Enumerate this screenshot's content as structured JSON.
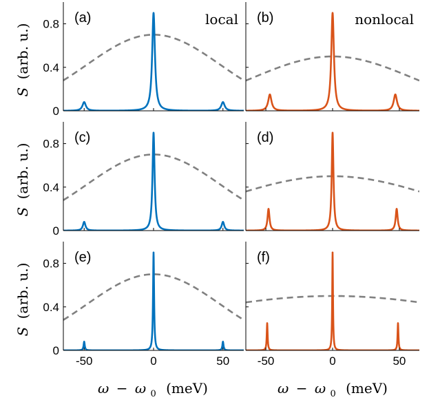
{
  "figure": {
    "ylabel_symbol": "S",
    "ylabel_unit": "(arb. u.)",
    "xlabel_omega": "ω",
    "xlabel_minus": "−",
    "xlabel_omega0": "ω",
    "xlabel_sub": "0",
    "xlabel_unit": "(meV)",
    "column_titles": [
      "local",
      "nonlocal"
    ],
    "colors": {
      "local": "#0072BD",
      "nonlocal": "#D95319",
      "envelope": "#808080",
      "axes": "#000000"
    }
  },
  "chart_data": [
    {
      "panel": "(a)",
      "type": "line",
      "corner_label": "local",
      "color": "#0072BD",
      "xlim": [
        -65,
        65
      ],
      "ylim": [
        0,
        1.0
      ],
      "xticks": [
        "-50",
        "0",
        "50"
      ],
      "yticks": [
        "0",
        "0.4",
        "0.8"
      ],
      "peaks": [
        {
          "x": -50,
          "y": 0.08,
          "width": 1.5
        },
        {
          "x": 0,
          "y": 0.9,
          "width": 1.2
        },
        {
          "x": 50,
          "y": 0.08,
          "width": 1.5
        }
      ],
      "envelope": {
        "style": "dashed",
        "peak": 0.7,
        "sigma": 48
      }
    },
    {
      "panel": "(b)",
      "type": "line",
      "corner_label": "nonlocal",
      "color": "#D95319",
      "xlim": [
        -65,
        65
      ],
      "ylim": [
        0,
        1.0
      ],
      "xticks": [
        "-50",
        "0",
        "50"
      ],
      "yticks": [
        "0",
        "0.4",
        "0.8"
      ],
      "peaks": [
        {
          "x": -47,
          "y": 0.15,
          "width": 1.5
        },
        {
          "x": 0,
          "y": 0.9,
          "width": 1.2
        },
        {
          "x": 47,
          "y": 0.15,
          "width": 1.5
        }
      ],
      "envelope": {
        "style": "dashed",
        "peak": 0.5,
        "sigma": 60
      }
    },
    {
      "panel": "(c)",
      "type": "line",
      "corner_label": "",
      "color": "#0072BD",
      "xlim": [
        -65,
        65
      ],
      "ylim": [
        0,
        1.0
      ],
      "xticks": [
        "-50",
        "0",
        "50"
      ],
      "yticks": [
        "0",
        "0.4",
        "0.8"
      ],
      "peaks": [
        {
          "x": -50,
          "y": 0.08,
          "width": 1.1
        },
        {
          "x": 0,
          "y": 0.9,
          "width": 0.9
        },
        {
          "x": 50,
          "y": 0.08,
          "width": 1.1
        }
      ],
      "envelope": {
        "style": "dashed",
        "peak": 0.7,
        "sigma": 48
      }
    },
    {
      "panel": "(d)",
      "type": "line",
      "corner_label": "",
      "color": "#D95319",
      "xlim": [
        -65,
        65
      ],
      "ylim": [
        0,
        1.0
      ],
      "xticks": [
        "-50",
        "0",
        "50"
      ],
      "yticks": [
        "0",
        "0.4",
        "0.8"
      ],
      "peaks": [
        {
          "x": -48,
          "y": 0.2,
          "width": 0.9
        },
        {
          "x": 0,
          "y": 0.9,
          "width": 0.8
        },
        {
          "x": 48,
          "y": 0.2,
          "width": 0.9
        }
      ],
      "envelope": {
        "style": "dashed",
        "peak": 0.5,
        "sigma": 80
      }
    },
    {
      "panel": "(e)",
      "type": "line",
      "corner_label": "",
      "color": "#0072BD",
      "xlim": [
        -65,
        65
      ],
      "ylim": [
        0,
        1.0
      ],
      "xticks": [
        "-50",
        "0",
        "50"
      ],
      "yticks": [
        "0",
        "0.4",
        "0.8"
      ],
      "peaks": [
        {
          "x": -50,
          "y": 0.08,
          "width": 0.5
        },
        {
          "x": 0,
          "y": 0.9,
          "width": 0.45
        },
        {
          "x": 50,
          "y": 0.08,
          "width": 0.5
        }
      ],
      "envelope": {
        "style": "dashed",
        "peak": 0.7,
        "sigma": 48
      }
    },
    {
      "panel": "(f)",
      "type": "line",
      "corner_label": "",
      "color": "#D95319",
      "xlim": [
        -65,
        65
      ],
      "ylim": [
        0,
        1.0
      ],
      "xticks": [
        "-50",
        "0",
        "50"
      ],
      "yticks": [
        "0",
        "0.4",
        "0.8"
      ],
      "peaks": [
        {
          "x": -49,
          "y": 0.25,
          "width": 0.4
        },
        {
          "x": 0,
          "y": 0.9,
          "width": 0.35
        },
        {
          "x": 49,
          "y": 0.25,
          "width": 0.4
        }
      ],
      "envelope": {
        "style": "dashed",
        "peak": 0.5,
        "sigma": 130
      }
    }
  ]
}
